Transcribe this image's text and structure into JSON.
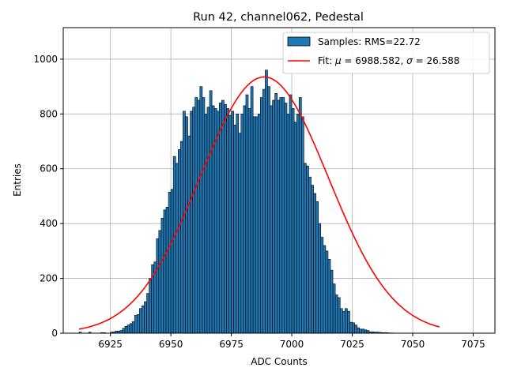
{
  "chart_data": {
    "type": "bar",
    "title": "Run 42, channel062, Pedestal",
    "xlabel": "ADC Counts",
    "ylabel": "Entries",
    "xlim": [
      6905,
      6915,
      6925,
      6935,
      6945,
      6955,
      6965,
      6975,
      6985,
      6995,
      7005,
      7015,
      7025,
      7035,
      7045,
      7055,
      7065,
      7075,
      7085
    ],
    "xlim_range": [
      6905.5,
      7084
    ],
    "ylim": [
      0,
      1115
    ],
    "xticks": [
      6925,
      6950,
      6975,
      7000,
      7025,
      7050,
      7075
    ],
    "yticks": [
      0,
      200,
      400,
      600,
      800,
      1000
    ],
    "grid": true,
    "legend_position": "top-right",
    "series": [
      {
        "name": "Samples: RMS=22.72",
        "kind": "histogram",
        "color": "#1f77b4",
        "bin_start": 6912,
        "bin_width": 1,
        "values": [
          4,
          0,
          0,
          0,
          4,
          0,
          0,
          0,
          0,
          2,
          2,
          0,
          0,
          4,
          5,
          8,
          8,
          10,
          18,
          25,
          30,
          35,
          42,
          65,
          68,
          90,
          100,
          115,
          145,
          200,
          250,
          260,
          345,
          375,
          420,
          450,
          460,
          515,
          525,
          645,
          620,
          670,
          700,
          810,
          790,
          720,
          810,
          825,
          860,
          850,
          900,
          860,
          800,
          825,
          885,
          830,
          820,
          810,
          840,
          850,
          835,
          820,
          795,
          810,
          760,
          800,
          730,
          800,
          830,
          870,
          820,
          900,
          790,
          790,
          800,
          860,
          890,
          960,
          900,
          830,
          850,
          875,
          850,
          860,
          860,
          840,
          800,
          870,
          820,
          770,
          800,
          860,
          790,
          620,
          610,
          570,
          540,
          510,
          480,
          400,
          350,
          320,
          300,
          270,
          230,
          180,
          140,
          130,
          90,
          80,
          90,
          80,
          40,
          38,
          30,
          20,
          15,
          15,
          12,
          10,
          5,
          5,
          4,
          4,
          3,
          2,
          2,
          2,
          1,
          1
        ]
      },
      {
        "name": "Fit: μ = 6988.582, σ = 26.588",
        "kind": "gaussian",
        "color": "#ff0000",
        "mu": 6988.582,
        "sigma": 26.588,
        "amplitude": 935,
        "x_range": [
          6912,
          7061
        ]
      }
    ]
  },
  "legend": {
    "samples_label": "Samples: RMS=22.72",
    "fit_label_prefix": "Fit: ",
    "mu_symbol": "μ",
    "mu_text": " = 6988.582, ",
    "sigma_symbol": "σ",
    "sigma_text": " = 26.588"
  }
}
